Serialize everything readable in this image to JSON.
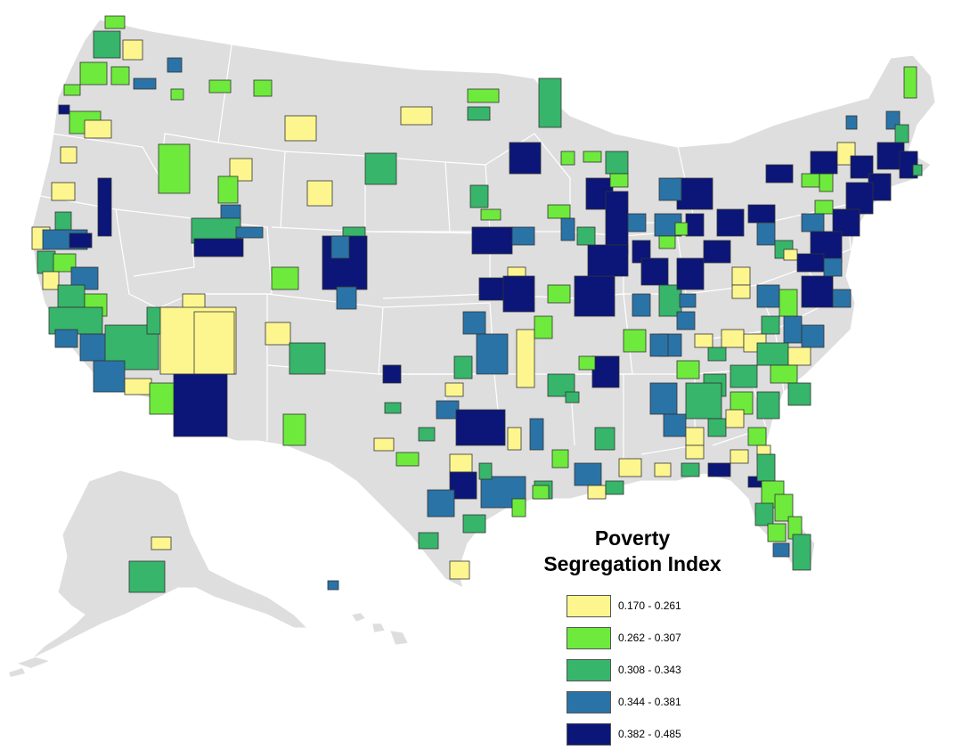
{
  "legend": {
    "title_line1": "Poverty",
    "title_line2": "Segregation Index",
    "classes": [
      {
        "label": "0.170 - 0.261",
        "color": "#fdf68f"
      },
      {
        "label": "0.262 - 0.307",
        "color": "#6eea3c"
      },
      {
        "label": "0.308 - 0.343",
        "color": "#37b56a"
      },
      {
        "label": "0.344 - 0.381",
        "color": "#2a73a6"
      },
      {
        "label": "0.382 - 0.485",
        "color": "#0b1678"
      }
    ]
  },
  "map": {
    "land_color": "#dedede",
    "border_color": "#ffffff",
    "outline_color": "#333333"
  }
}
